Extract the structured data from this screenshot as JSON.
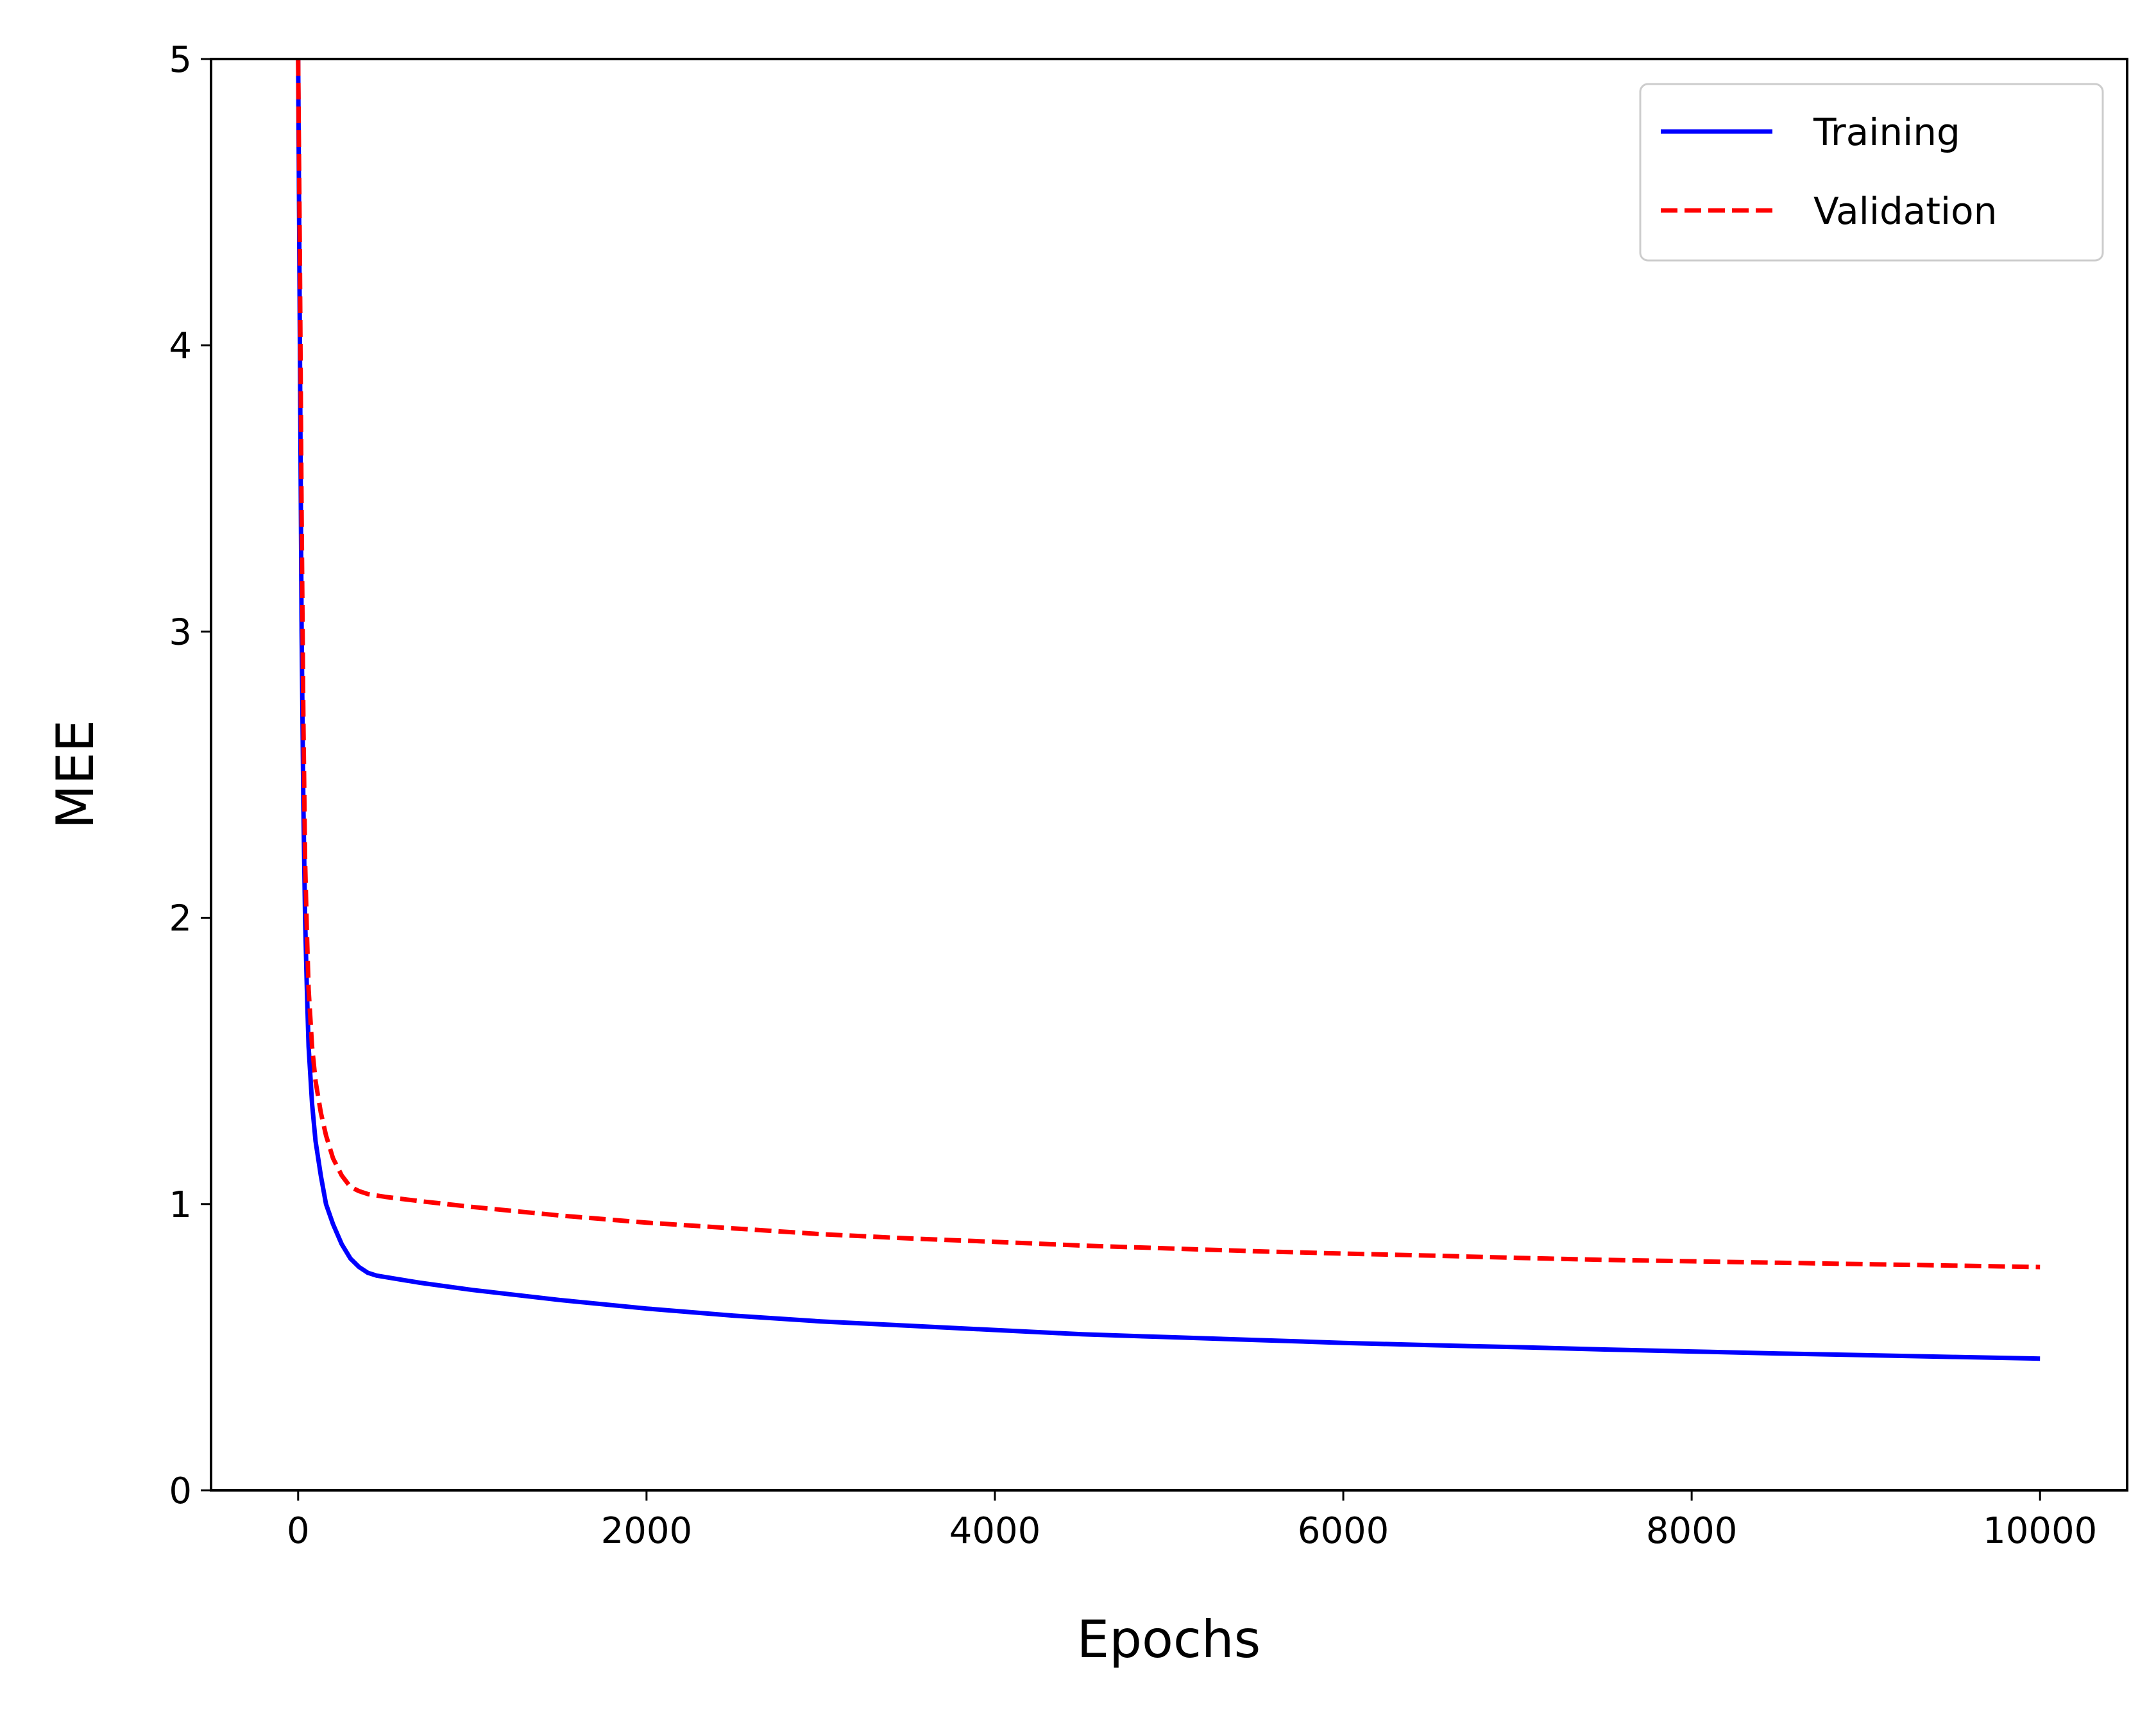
{
  "chart_data": {
    "type": "line",
    "title": "",
    "xlabel": "Epochs",
    "ylabel": "MEE",
    "xlim": [
      -500,
      10500
    ],
    "ylim": [
      0,
      5
    ],
    "xticks": [
      0,
      2000,
      4000,
      6000,
      8000,
      10000
    ],
    "xtick_labels": [
      "0",
      "2000",
      "4000",
      "6000",
      "8000",
      "10000"
    ],
    "yticks": [
      0,
      1,
      2,
      3,
      4,
      5
    ],
    "ytick_labels": [
      "0",
      "1",
      "2",
      "3",
      "4",
      "5"
    ],
    "grid": false,
    "legend_position": "upper right",
    "series": [
      {
        "name": "Training",
        "color": "#0000ff",
        "style": "solid",
        "x": [
          0,
          10,
          20,
          30,
          40,
          50,
          60,
          80,
          100,
          130,
          160,
          200,
          250,
          300,
          350,
          400,
          450,
          500,
          700,
          1000,
          1500,
          2000,
          2500,
          3000,
          3500,
          4000,
          4500,
          5000,
          5500,
          6000,
          6500,
          7000,
          7500,
          8000,
          8500,
          9000,
          9500,
          10000
        ],
        "y": [
          5.0,
          4.0,
          3.0,
          2.4,
          2.0,
          1.75,
          1.55,
          1.35,
          1.22,
          1.1,
          1.0,
          0.93,
          0.86,
          0.81,
          0.78,
          0.76,
          0.75,
          0.745,
          0.725,
          0.7,
          0.665,
          0.635,
          0.61,
          0.59,
          0.575,
          0.56,
          0.545,
          0.535,
          0.525,
          0.515,
          0.507,
          0.5,
          0.492,
          0.485,
          0.478,
          0.472,
          0.466,
          0.46
        ]
      },
      {
        "name": "Validation",
        "color": "#ff0000",
        "style": "dashed",
        "x": [
          0,
          10,
          20,
          30,
          40,
          50,
          60,
          80,
          100,
          130,
          160,
          200,
          250,
          300,
          350,
          400,
          450,
          500,
          700,
          1000,
          1500,
          2000,
          2500,
          3000,
          3500,
          4000,
          4500,
          5000,
          5500,
          6000,
          6500,
          7000,
          7500,
          8000,
          8500,
          9000,
          9500,
          10000
        ],
        "y": [
          5.0,
          4.3,
          3.4,
          2.7,
          2.2,
          1.95,
          1.75,
          1.55,
          1.43,
          1.32,
          1.24,
          1.16,
          1.1,
          1.06,
          1.045,
          1.035,
          1.03,
          1.025,
          1.01,
          0.99,
          0.96,
          0.935,
          0.915,
          0.895,
          0.88,
          0.868,
          0.855,
          0.845,
          0.835,
          0.827,
          0.82,
          0.812,
          0.805,
          0.8,
          0.795,
          0.79,
          0.785,
          0.78
        ]
      }
    ]
  }
}
